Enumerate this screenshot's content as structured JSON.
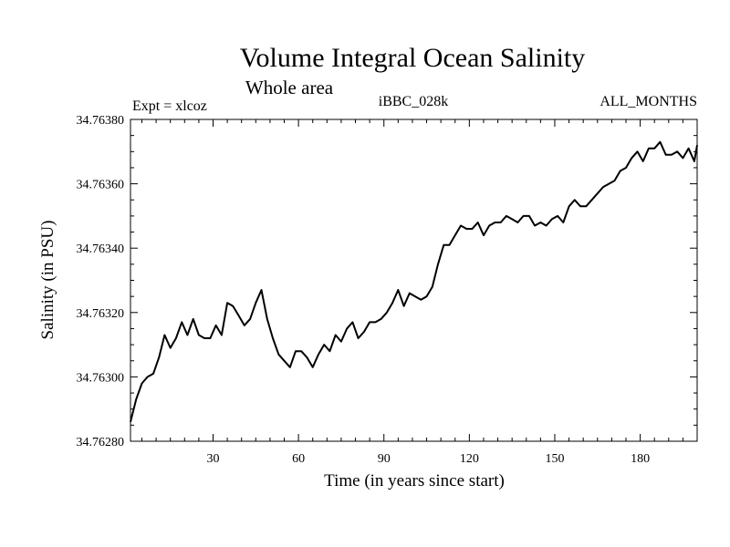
{
  "chart_data": {
    "type": "line",
    "title": "Volume Integral Ocean Salinity",
    "subtitle": "Whole area",
    "header_left": "Expt = xlcoz",
    "header_center": "iBBC_028k",
    "header_right": "ALL_MONTHS",
    "xlabel": "Time (in years since start)",
    "ylabel": "Salinity (in PSU)",
    "xlim": [
      1,
      200
    ],
    "ylim": [
      34.7628,
      34.7638
    ],
    "x_ticks": [
      30,
      60,
      90,
      120,
      150,
      180
    ],
    "y_ticks": [
      "34.76280",
      "34.76300",
      "34.76320",
      "34.76340",
      "34.76360",
      "34.76380"
    ],
    "series": [
      {
        "name": "Salinity",
        "x": [
          1,
          3,
          5,
          7,
          9,
          11,
          13,
          15,
          17,
          19,
          21,
          23,
          25,
          27,
          29,
          31,
          33,
          35,
          37,
          39,
          41,
          43,
          45,
          47,
          49,
          51,
          53,
          55,
          57,
          59,
          61,
          63,
          65,
          67,
          69,
          71,
          73,
          75,
          77,
          79,
          81,
          83,
          85,
          87,
          89,
          91,
          93,
          95,
          97,
          99,
          101,
          103,
          105,
          107,
          109,
          111,
          113,
          115,
          117,
          119,
          121,
          123,
          125,
          127,
          129,
          131,
          133,
          135,
          137,
          139,
          141,
          143,
          145,
          147,
          149,
          151,
          153,
          155,
          157,
          159,
          161,
          163,
          165,
          167,
          169,
          171,
          173,
          175,
          177,
          179,
          181,
          183,
          185,
          187,
          189,
          191,
          193,
          195,
          197,
          199,
          200
        ],
        "values": [
          34.76286,
          34.76293,
          34.76298,
          34.763,
          34.76301,
          34.76306,
          34.76313,
          34.76309,
          34.76312,
          34.76317,
          34.76313,
          34.76318,
          34.76313,
          34.76312,
          34.76312,
          34.76316,
          34.76313,
          34.76323,
          34.76322,
          34.76319,
          34.76316,
          34.76318,
          34.76323,
          34.76327,
          34.76318,
          34.76312,
          34.76307,
          34.76305,
          34.76303,
          34.76308,
          34.76308,
          34.76306,
          34.76303,
          34.76307,
          34.7631,
          34.76308,
          34.76313,
          34.76311,
          34.76315,
          34.76317,
          34.76312,
          34.76314,
          34.76317,
          34.76317,
          34.76318,
          34.7632,
          34.76323,
          34.76327,
          34.76322,
          34.76326,
          34.76325,
          34.76324,
          34.76325,
          34.76328,
          34.76335,
          34.76341,
          34.76341,
          34.76344,
          34.76347,
          34.76346,
          34.76346,
          34.76348,
          34.76344,
          34.76347,
          34.76348,
          34.76348,
          34.7635,
          34.76349,
          34.76348,
          34.7635,
          34.7635,
          34.76347,
          34.76348,
          34.76347,
          34.76349,
          34.7635,
          34.76348,
          34.76353,
          34.76355,
          34.76353,
          34.76353,
          34.76355,
          34.76357,
          34.76359,
          34.7636,
          34.76361,
          34.76364,
          34.76365,
          34.76368,
          34.7637,
          34.76367,
          34.76371,
          34.76371,
          34.76373,
          34.76369,
          34.76369,
          34.7637,
          34.76368,
          34.76371,
          34.76367,
          34.76372
        ]
      }
    ]
  }
}
